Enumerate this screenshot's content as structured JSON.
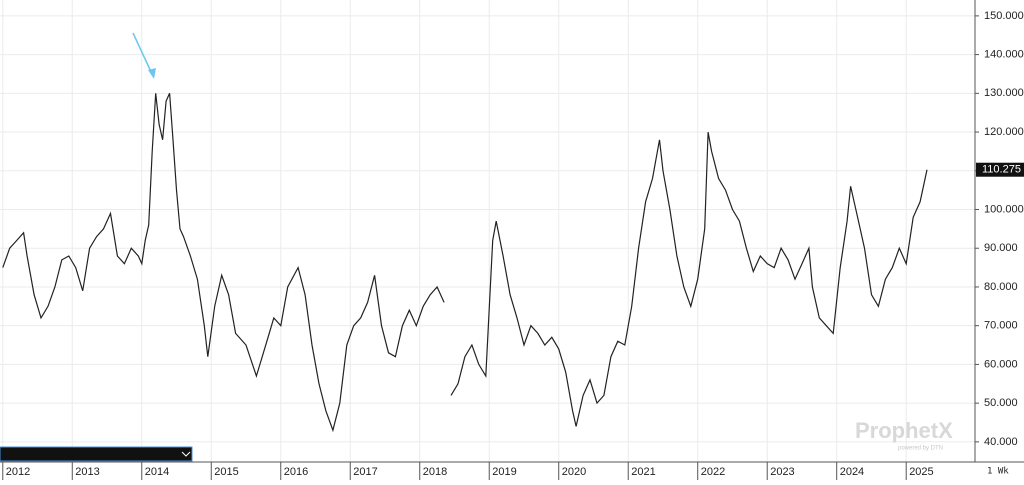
{
  "chart_data": {
    "type": "line",
    "x": [
      2012.0,
      2012.1,
      2012.2,
      2012.3,
      2012.35,
      2012.45,
      2012.55,
      2012.65,
      2012.75,
      2012.85,
      2012.95,
      2013.05,
      2013.15,
      2013.25,
      2013.35,
      2013.45,
      2013.55,
      2013.65,
      2013.75,
      2013.85,
      2013.95,
      2014.0,
      2014.05,
      2014.1,
      2014.15,
      2014.2,
      2014.25,
      2014.3,
      2014.35,
      2014.4,
      2014.45,
      2014.5,
      2014.55,
      2014.6,
      2014.7,
      2014.8,
      2014.9,
      2014.95,
      2015.05,
      2015.15,
      2015.25,
      2015.35,
      2015.5,
      2015.65,
      2015.8,
      2015.9,
      2016.0,
      2016.1,
      2016.25,
      2016.35,
      2016.45,
      2016.55,
      2016.65,
      2016.75,
      2016.85,
      2016.95,
      2017.05,
      2017.15,
      2017.25,
      2017.35,
      2017.45,
      2017.55,
      2017.65,
      2017.75,
      2017.85,
      2017.95,
      2018.05,
      2018.15,
      2018.25,
      2018.35,
      2018.4,
      2018.45,
      2018.55,
      2018.65,
      2018.75,
      2018.85,
      2018.95,
      2019.05,
      2019.1,
      2019.2,
      2019.3,
      2019.4,
      2019.5,
      2019.6,
      2019.7,
      2019.8,
      2019.9,
      2020.0,
      2020.1,
      2020.2,
      2020.25,
      2020.35,
      2020.45,
      2020.55,
      2020.65,
      2020.75,
      2020.85,
      2020.95,
      2021.05,
      2021.15,
      2021.25,
      2021.35,
      2021.45,
      2021.5,
      2021.6,
      2021.7,
      2021.8,
      2021.9,
      2022.0,
      2022.1,
      2022.15,
      2022.2,
      2022.3,
      2022.4,
      2022.5,
      2022.6,
      2022.7,
      2022.8,
      2022.9,
      2023.0,
      2023.1,
      2023.2,
      2023.3,
      2023.4,
      2023.5,
      2023.6,
      2023.65,
      2023.75,
      2023.85,
      2023.95,
      2024.05,
      2024.15,
      2024.2,
      2024.3,
      2024.4,
      2024.5,
      2024.6,
      2024.7,
      2024.8,
      2024.9,
      2025.0,
      2025.1,
      2025.2,
      2025.3
    ],
    "series": [
      {
        "color": "#222222",
        "values": [
          85,
          90,
          92,
          94,
          88,
          78,
          72,
          75,
          80,
          87,
          88,
          85,
          79,
          90,
          93,
          95,
          99,
          88,
          86,
          90,
          88,
          86,
          92,
          96,
          115,
          130,
          122,
          118,
          128,
          130,
          118,
          105,
          95,
          93,
          88,
          82,
          70,
          62,
          75,
          83,
          78,
          68,
          65,
          57,
          66,
          72,
          70,
          80,
          85,
          78,
          65,
          55,
          48,
          43,
          50,
          65,
          70,
          72,
          76,
          83,
          70,
          63,
          62,
          70,
          74,
          70,
          75,
          78,
          80,
          76,
          null,
          52,
          55,
          62,
          65,
          60,
          57,
          92,
          97,
          88,
          78,
          72,
          65,
          70,
          68,
          65,
          67,
          64,
          58,
          48,
          44,
          52,
          56,
          50,
          52,
          62,
          66,
          65,
          75,
          90,
          102,
          108,
          118,
          110,
          100,
          88,
          80,
          75,
          82,
          95,
          120,
          115,
          108,
          105,
          100,
          97,
          90,
          84,
          88,
          86,
          85,
          90,
          87,
          82,
          86,
          90,
          80,
          72,
          70,
          68,
          85,
          97,
          106,
          98,
          90,
          78,
          75,
          82,
          85,
          90,
          86,
          98,
          102,
          110.275
        ]
      }
    ],
    "last_price": 110.275,
    "xlim": [
      2011.96,
      2025.99
    ],
    "xticks": [
      2012,
      2013,
      2014,
      2015,
      2016,
      2017,
      2018,
      2019,
      2020,
      2021,
      2022,
      2023,
      2024,
      2025
    ],
    "ylim": [
      34.8,
      154.1
    ],
    "yticks": [
      {
        "value": 40,
        "label": "40.000"
      },
      {
        "value": 50,
        "label": "50.000"
      },
      {
        "value": 60,
        "label": "60.000"
      },
      {
        "value": 70,
        "label": "70.000"
      },
      {
        "value": 80,
        "label": "80.000"
      },
      {
        "value": 90,
        "label": "90.000"
      },
      {
        "value": 100,
        "label": "100.000"
      },
      {
        "value": 110,
        "label": "110.000"
      },
      {
        "value": 120,
        "label": "120.000"
      },
      {
        "value": 130,
        "label": "130.000"
      },
      {
        "value": 140,
        "label": "140.000"
      },
      {
        "value": 150,
        "label": "150.000"
      }
    ],
    "grid": true,
    "interval": "1 Wk",
    "watermark": "ProphetX",
    "watermark_sub": "powered by DTN"
  }
}
